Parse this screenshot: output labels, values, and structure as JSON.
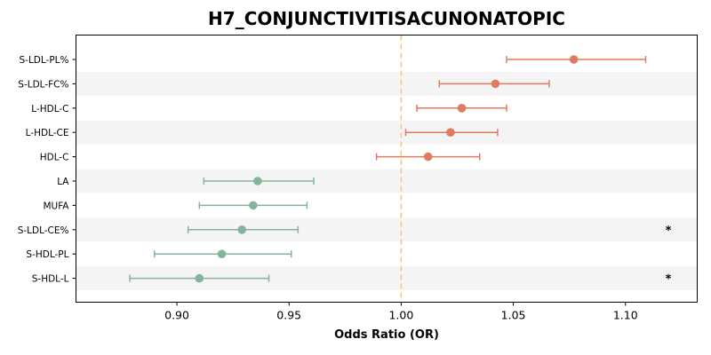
{
  "chart_data": {
    "type": "forest",
    "title": "H7_CONJUNCTIVITISACUNONATOPIC",
    "xlabel": "Odds Ratio (OR)",
    "ylabel": "",
    "xlim": [
      0.855,
      1.132
    ],
    "xticks": [
      0.9,
      0.95,
      1.0,
      1.05,
      1.1
    ],
    "xtick_labels": [
      "0.90",
      "0.95",
      "1.00",
      "1.05",
      "1.10"
    ],
    "reference_line": 1.0,
    "grid": false,
    "colors": {
      "positive": "#e07b5f",
      "negative": "#84b59a",
      "reference": "#f5c57a",
      "band": "#f4f4f4"
    },
    "significance_marker": "*",
    "rows": [
      {
        "label": "S-LDL-PL%",
        "or": 1.077,
        "ci_low": 1.047,
        "ci_high": 1.109,
        "significant": false
      },
      {
        "label": "S-LDL-FC%",
        "or": 1.042,
        "ci_low": 1.017,
        "ci_high": 1.066,
        "significant": false
      },
      {
        "label": "L-HDL-C",
        "or": 1.027,
        "ci_low": 1.007,
        "ci_high": 1.047,
        "significant": false
      },
      {
        "label": "L-HDL-CE",
        "or": 1.022,
        "ci_low": 1.002,
        "ci_high": 1.043,
        "significant": false
      },
      {
        "label": "HDL-C",
        "or": 1.012,
        "ci_low": 0.989,
        "ci_high": 1.035,
        "significant": false
      },
      {
        "label": "LA",
        "or": 0.936,
        "ci_low": 0.912,
        "ci_high": 0.961,
        "significant": false
      },
      {
        "label": "MUFA",
        "or": 0.934,
        "ci_low": 0.91,
        "ci_high": 0.958,
        "significant": false
      },
      {
        "label": "S-LDL-CE%",
        "or": 0.929,
        "ci_low": 0.905,
        "ci_high": 0.954,
        "significant": true
      },
      {
        "label": "S-HDL-PL",
        "or": 0.92,
        "ci_low": 0.89,
        "ci_high": 0.951,
        "significant": false
      },
      {
        "label": "S-HDL-L",
        "or": 0.91,
        "ci_low": 0.879,
        "ci_high": 0.941,
        "significant": true
      }
    ]
  }
}
